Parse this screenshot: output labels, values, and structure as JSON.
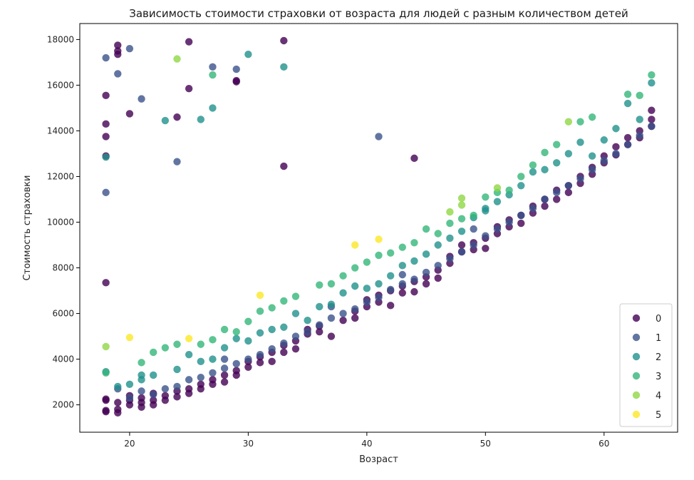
{
  "chart_data": {
    "type": "scatter",
    "title": "Зависимость стоимости страховки от возраста для людей с разным количеством детей",
    "xlabel": "Возраст",
    "ylabel": "Стоимость страховки",
    "xlim": [
      15.8,
      66.2
    ],
    "ylim": [
      800,
      18700
    ],
    "xticks": [
      20,
      30,
      40,
      50,
      60
    ],
    "yticks": [
      2000,
      4000,
      6000,
      8000,
      10000,
      12000,
      14000,
      16000,
      18000
    ],
    "grid": false,
    "legend_position": "lower-right",
    "point_opacity": 0.8,
    "series": [
      {
        "name": "0",
        "color": "#440154",
        "points": [
          [
            18,
            1700
          ],
          [
            18,
            1750
          ],
          [
            18,
            2200
          ],
          [
            18,
            2250
          ],
          [
            19,
            1650
          ],
          [
            19,
            1800
          ],
          [
            19,
            2100
          ],
          [
            20,
            2000
          ],
          [
            20,
            2200
          ],
          [
            20,
            2400
          ],
          [
            21,
            1900
          ],
          [
            21,
            2100
          ],
          [
            21,
            2300
          ],
          [
            22,
            2000
          ],
          [
            22,
            2200
          ],
          [
            22,
            2500
          ],
          [
            23,
            2200
          ],
          [
            23,
            2400
          ],
          [
            24,
            2350
          ],
          [
            24,
            2600
          ],
          [
            25,
            2500
          ],
          [
            25,
            2700
          ],
          [
            26,
            2700
          ],
          [
            26,
            2900
          ],
          [
            27,
            2900
          ],
          [
            27,
            3100
          ],
          [
            28,
            3000
          ],
          [
            28,
            3300
          ],
          [
            29,
            3300
          ],
          [
            29,
            3500
          ],
          [
            30,
            3650
          ],
          [
            30,
            3900
          ],
          [
            31,
            3850
          ],
          [
            31,
            4100
          ],
          [
            32,
            3900
          ],
          [
            32,
            4300
          ],
          [
            33,
            4300
          ],
          [
            33,
            4600
          ],
          [
            34,
            4450
          ],
          [
            34,
            4800
          ],
          [
            35,
            5100
          ],
          [
            35,
            5300
          ],
          [
            36,
            5200
          ],
          [
            36,
            5450
          ],
          [
            37,
            5000
          ],
          [
            38,
            5700
          ],
          [
            39,
            5800
          ],
          [
            39,
            6100
          ],
          [
            40,
            6300
          ],
          [
            40,
            6600
          ],
          [
            41,
            6500
          ],
          [
            41,
            6800
          ],
          [
            42,
            6350
          ],
          [
            42,
            7000
          ],
          [
            43,
            6900
          ],
          [
            43,
            7200
          ],
          [
            44,
            6950
          ],
          [
            44,
            7400
          ],
          [
            45,
            7300
          ],
          [
            45,
            7600
          ],
          [
            46,
            7550
          ],
          [
            46,
            7900
          ],
          [
            47,
            8200
          ],
          [
            47,
            8500
          ],
          [
            48,
            8700
          ],
          [
            48,
            9000
          ],
          [
            49,
            8800
          ],
          [
            49,
            9100
          ],
          [
            50,
            8850
          ],
          [
            50,
            9300
          ],
          [
            51,
            9500
          ],
          [
            51,
            9800
          ],
          [
            52,
            9800
          ],
          [
            52,
            10100
          ],
          [
            53,
            9950
          ],
          [
            53,
            10300
          ],
          [
            54,
            10400
          ],
          [
            54,
            10700
          ],
          [
            55,
            10700
          ],
          [
            55,
            11000
          ],
          [
            56,
            11000
          ],
          [
            56,
            11400
          ],
          [
            57,
            11300
          ],
          [
            57,
            11600
          ],
          [
            58,
            11700
          ],
          [
            58,
            12000
          ],
          [
            59,
            12100
          ],
          [
            59,
            12400
          ],
          [
            60,
            12600
          ],
          [
            60,
            12900
          ],
          [
            61,
            12950
          ],
          [
            61,
            13300
          ],
          [
            62,
            13400
          ],
          [
            62,
            13700
          ],
          [
            63,
            13700
          ],
          [
            63,
            14000
          ],
          [
            64,
            14200
          ],
          [
            64,
            14500
          ],
          [
            64,
            14900
          ],
          [
            18,
            7350
          ],
          [
            18,
            12900
          ],
          [
            18,
            13750
          ],
          [
            18,
            14300
          ],
          [
            18,
            15550
          ],
          [
            19,
            17350
          ],
          [
            19,
            17500
          ],
          [
            19,
            17750
          ],
          [
            20,
            14750
          ],
          [
            24,
            14600
          ],
          [
            25,
            15850
          ],
          [
            25,
            17900
          ],
          [
            29,
            16150
          ],
          [
            29,
            16200
          ],
          [
            33,
            12450
          ],
          [
            33,
            17950
          ],
          [
            44,
            12800
          ]
        ]
      },
      {
        "name": "1",
        "color": "#3b528b",
        "points": [
          [
            19,
            2700
          ],
          [
            20,
            2300
          ],
          [
            21,
            2600
          ],
          [
            22,
            2450
          ],
          [
            23,
            2700
          ],
          [
            24,
            2800
          ],
          [
            25,
            3100
          ],
          [
            26,
            3200
          ],
          [
            27,
            3400
          ],
          [
            28,
            3600
          ],
          [
            29,
            3800
          ],
          [
            30,
            4000
          ],
          [
            31,
            4200
          ],
          [
            32,
            4450
          ],
          [
            33,
            4700
          ],
          [
            34,
            5000
          ],
          [
            35,
            5200
          ],
          [
            36,
            5500
          ],
          [
            37,
            5800
          ],
          [
            38,
            6000
          ],
          [
            39,
            6200
          ],
          [
            40,
            6500
          ],
          [
            41,
            6700
          ],
          [
            42,
            7050
          ],
          [
            43,
            7300
          ],
          [
            44,
            7500
          ],
          [
            45,
            7800
          ],
          [
            46,
            8100
          ],
          [
            47,
            8400
          ],
          [
            48,
            8700
          ],
          [
            49,
            9000
          ],
          [
            50,
            9400
          ],
          [
            51,
            9700
          ],
          [
            52,
            10000
          ],
          [
            53,
            10300
          ],
          [
            54,
            10600
          ],
          [
            55,
            11000
          ],
          [
            56,
            11300
          ],
          [
            57,
            11600
          ],
          [
            58,
            11900
          ],
          [
            59,
            12300
          ],
          [
            60,
            12700
          ],
          [
            61,
            13000
          ],
          [
            62,
            13400
          ],
          [
            63,
            13800
          ],
          [
            64,
            14200
          ],
          [
            28,
            4000
          ],
          [
            37,
            6300
          ],
          [
            43,
            7700
          ],
          [
            49,
            9700
          ],
          [
            18,
            11300
          ],
          [
            18,
            17200
          ],
          [
            19,
            16500
          ],
          [
            20,
            17600
          ],
          [
            21,
            15400
          ],
          [
            24,
            12650
          ],
          [
            27,
            16800
          ],
          [
            29,
            16700
          ],
          [
            41,
            13750
          ]
        ]
      },
      {
        "name": "2",
        "color": "#21918c",
        "points": [
          [
            18,
            3450
          ],
          [
            19,
            2800
          ],
          [
            20,
            2900
          ],
          [
            21,
            3100
          ],
          [
            21,
            3300
          ],
          [
            22,
            3300
          ],
          [
            24,
            3550
          ],
          [
            25,
            4200
          ],
          [
            26,
            3900
          ],
          [
            27,
            4000
          ],
          [
            28,
            4500
          ],
          [
            29,
            4900
          ],
          [
            30,
            4800
          ],
          [
            31,
            5150
          ],
          [
            32,
            5300
          ],
          [
            33,
            5400
          ],
          [
            34,
            6000
          ],
          [
            35,
            5700
          ],
          [
            36,
            6300
          ],
          [
            37,
            6400
          ],
          [
            38,
            6900
          ],
          [
            39,
            7200
          ],
          [
            40,
            7100
          ],
          [
            41,
            7300
          ],
          [
            42,
            7650
          ],
          [
            43,
            8100
          ],
          [
            44,
            8300
          ],
          [
            45,
            8600
          ],
          [
            46,
            9000
          ],
          [
            47,
            9300
          ],
          [
            48,
            9600
          ],
          [
            49,
            10200
          ],
          [
            50,
            10500
          ],
          [
            51,
            10900
          ],
          [
            52,
            11200
          ],
          [
            53,
            11600
          ],
          [
            54,
            12200
          ],
          [
            55,
            12300
          ],
          [
            56,
            12600
          ],
          [
            57,
            13000
          ],
          [
            58,
            13500
          ],
          [
            59,
            12900
          ],
          [
            60,
            13600
          ],
          [
            61,
            14100
          ],
          [
            62,
            15200
          ],
          [
            63,
            14500
          ],
          [
            64,
            16100
          ],
          [
            50,
            10600
          ],
          [
            18,
            12850
          ],
          [
            23,
            14450
          ],
          [
            26,
            14500
          ],
          [
            27,
            15000
          ],
          [
            30,
            17350
          ],
          [
            33,
            16800
          ]
        ]
      },
      {
        "name": "3",
        "color": "#35b779",
        "points": [
          [
            18,
            3400
          ],
          [
            21,
            3850
          ],
          [
            22,
            4300
          ],
          [
            23,
            4500
          ],
          [
            24,
            4650
          ],
          [
            26,
            4650
          ],
          [
            27,
            4850
          ],
          [
            28,
            5300
          ],
          [
            29,
            5200
          ],
          [
            30,
            5650
          ],
          [
            31,
            6100
          ],
          [
            32,
            6250
          ],
          [
            33,
            6550
          ],
          [
            34,
            6750
          ],
          [
            36,
            7250
          ],
          [
            37,
            7300
          ],
          [
            38,
            7650
          ],
          [
            39,
            8000
          ],
          [
            40,
            8250
          ],
          [
            41,
            8550
          ],
          [
            42,
            8650
          ],
          [
            43,
            8900
          ],
          [
            44,
            9100
          ],
          [
            45,
            9700
          ],
          [
            46,
            9500
          ],
          [
            47,
            9950
          ],
          [
            48,
            10150
          ],
          [
            49,
            10300
          ],
          [
            50,
            11100
          ],
          [
            51,
            11300
          ],
          [
            52,
            11400
          ],
          [
            53,
            12000
          ],
          [
            54,
            12500
          ],
          [
            55,
            13050
          ],
          [
            56,
            13400
          ],
          [
            58,
            14400
          ],
          [
            59,
            14600
          ],
          [
            62,
            15600
          ],
          [
            63,
            15550
          ],
          [
            64,
            16450
          ],
          [
            27,
            16450
          ]
        ]
      },
      {
        "name": "4",
        "color": "#90d743",
        "points": [
          [
            18,
            4550
          ],
          [
            24,
            17150
          ],
          [
            47,
            10450
          ],
          [
            48,
            10750
          ],
          [
            48,
            11050
          ],
          [
            51,
            11500
          ],
          [
            57,
            14400
          ]
        ]
      },
      {
        "name": "5",
        "color": "#fde725",
        "points": [
          [
            20,
            4950
          ],
          [
            25,
            4900
          ],
          [
            31,
            6800
          ],
          [
            39,
            9000
          ],
          [
            41,
            9250
          ]
        ]
      }
    ]
  }
}
